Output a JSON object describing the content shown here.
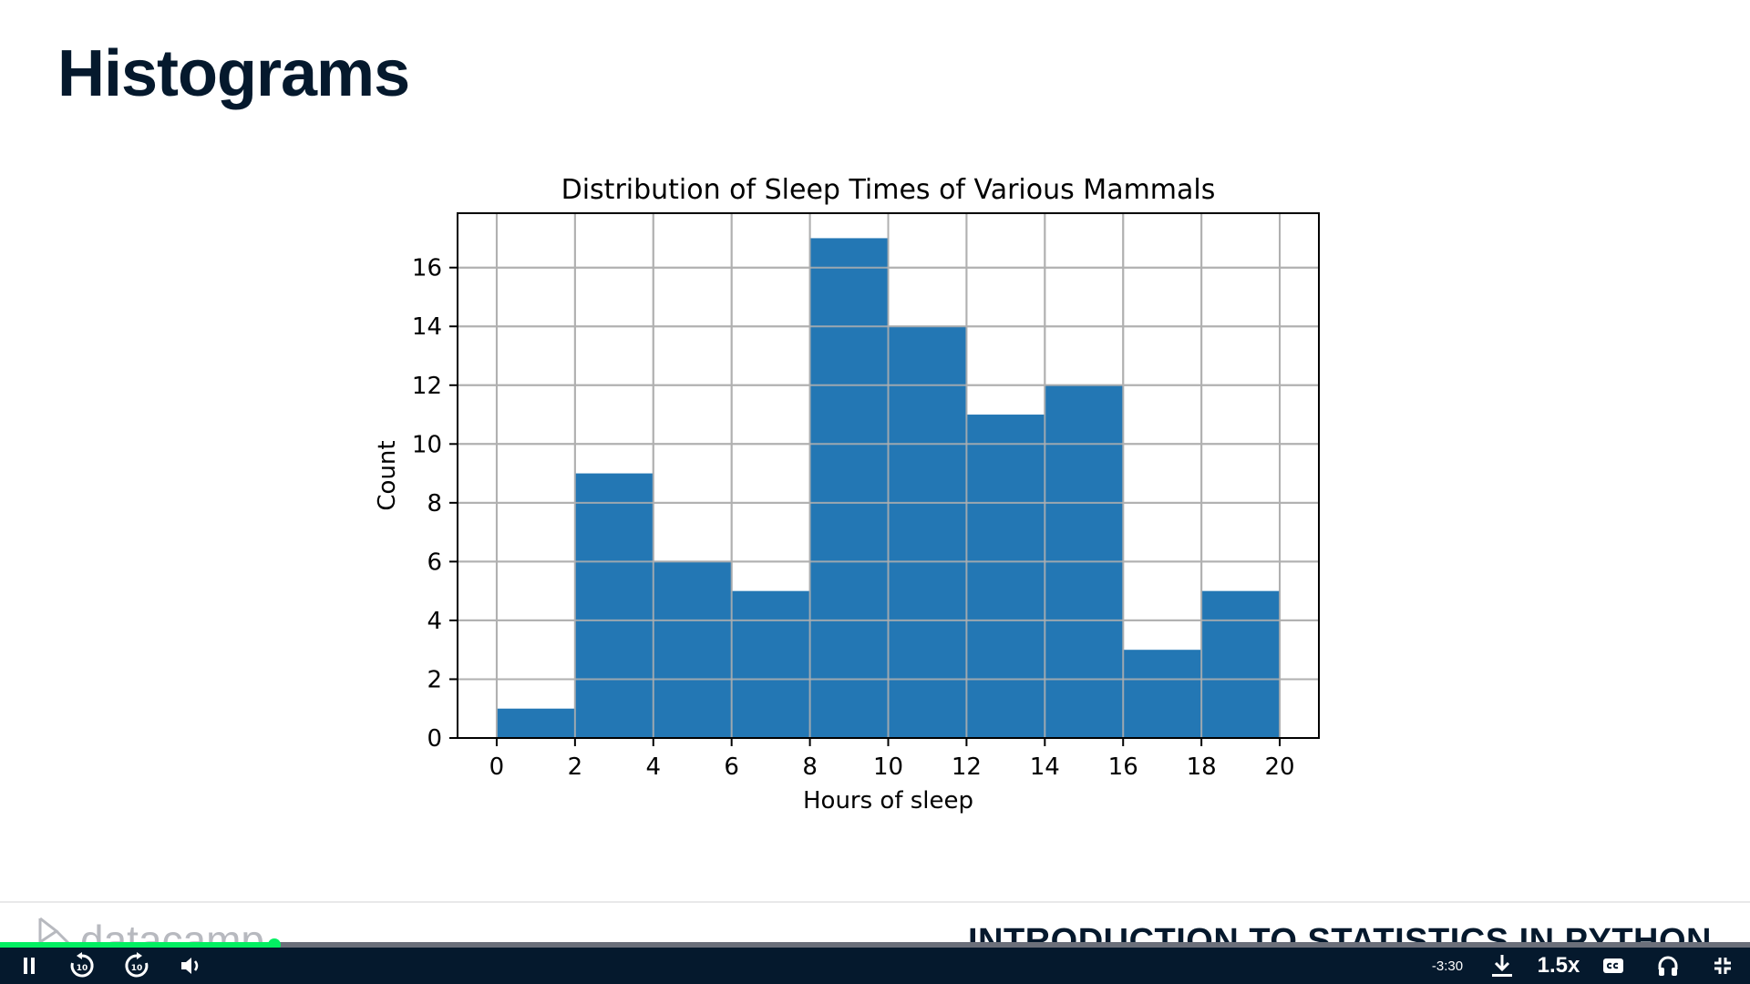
{
  "slide": {
    "title": "Histograms",
    "course_title": "INTRODUCTION TO STATISTICS IN PYTHON",
    "logo_text": "datacamp"
  },
  "chart_data": {
    "type": "bar",
    "title": "Distribution of Sleep Times of Various Mammals",
    "xlabel": "Hours of sleep",
    "ylabel": "Count",
    "bin_edges": [
      0,
      2,
      4,
      6,
      8,
      10,
      12,
      14,
      16,
      18,
      20
    ],
    "values": [
      1,
      9,
      6,
      5,
      17,
      14,
      11,
      12,
      3,
      5
    ],
    "xlim": [
      -1,
      21
    ],
    "ylim": [
      0,
      17.85
    ],
    "xticks": [
      0,
      2,
      4,
      6,
      8,
      10,
      12,
      14,
      16,
      18,
      20
    ],
    "yticks": [
      0,
      2,
      4,
      6,
      8,
      10,
      12,
      14,
      16
    ],
    "grid": true,
    "bar_color": "#2377b4"
  },
  "player": {
    "progress_fraction": 0.157,
    "time_remaining": "-3:30",
    "speed": "1.5x",
    "accent_color": "#03ef62",
    "icons": {
      "pause": "pause-icon",
      "rewind": "rewind-10-icon",
      "forward": "forward-10-icon",
      "volume": "volume-icon",
      "download": "download-icon",
      "captions": "captions-icon",
      "audio": "headphones-icon",
      "fullscreen": "exit-fullscreen-icon"
    }
  }
}
